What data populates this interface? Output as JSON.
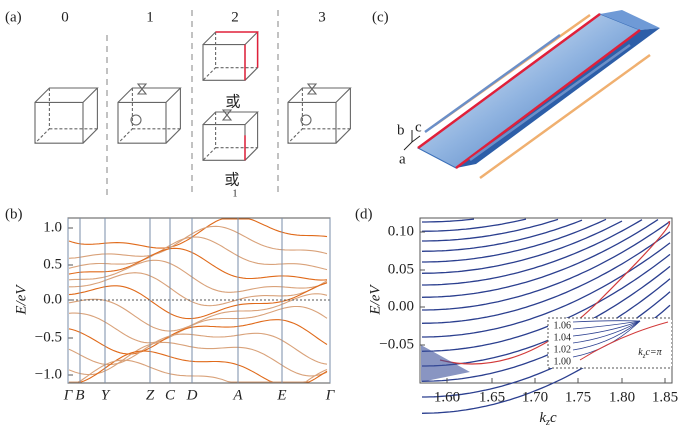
{
  "panel_a": {
    "label": "(a)",
    "columns": [
      "0",
      "1",
      "2",
      "3"
    ],
    "notes": [
      "或",
      "或"
    ],
    "subscript": "1"
  },
  "panel_b": {
    "label": "(b)",
    "ylabel": "E/eV",
    "yticks": [
      "1.0",
      "0.5",
      "0.0",
      "−0.5",
      "−1.0"
    ],
    "kpoints": [
      "Γ",
      "B",
      "Y",
      "Z",
      "C",
      "D",
      "A",
      "E",
      "Γ"
    ]
  },
  "panel_c": {
    "label": "(c)",
    "axes": [
      "b",
      "c",
      "a"
    ]
  },
  "panel_d": {
    "label": "(d)",
    "ylabel": "E/eV",
    "yticks": [
      "0.10",
      "0.05",
      "0.00",
      "−0.05"
    ],
    "xticks": [
      "1.60",
      "1.65",
      "1.70",
      "1.75",
      "1.80",
      "1.85"
    ],
    "xlabel": [
      "k",
      "z",
      "c"
    ],
    "inset": {
      "yticks": [
        "1.06",
        "1.04",
        "1.02",
        "1.00"
      ],
      "label": [
        "k",
        "z",
        "c=π"
      ]
    }
  }
}
